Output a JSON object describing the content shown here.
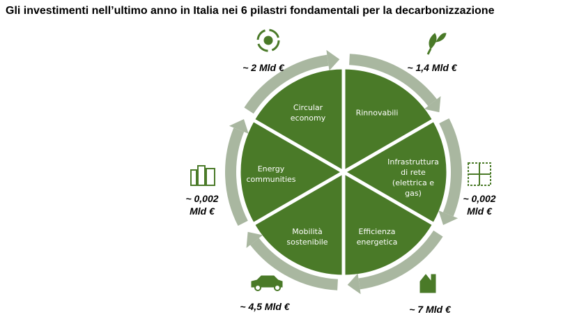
{
  "title": "Gli investimenti nell’ultimo anno in Italia nei 6 pilastri fondamentali per la decarbonizzazione",
  "pillars": [
    {
      "label": "Rinnovabili",
      "amount": "~ 1,4 Mld €"
    },
    {
      "label": "Infrastruttura di rete (elettrica e gas)",
      "amount": "~  0,002 Mld €"
    },
    {
      "label": "Efficienza energetica",
      "amount": "~ 7 Mld €"
    },
    {
      "label": "Mobilità sostenibile",
      "amount": "~ 4,5 Mld €"
    },
    {
      "label": "Energy communities",
      "amount": "~  0,002 Mld €"
    },
    {
      "label": "Circular economy",
      "amount": "~ 2 Mld €"
    }
  ]
}
